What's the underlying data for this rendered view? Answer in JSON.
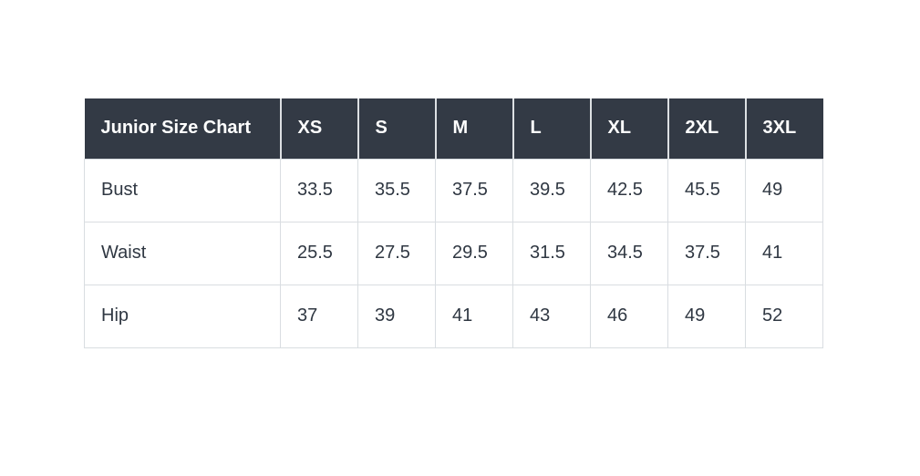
{
  "page": {
    "background": "#ffffff"
  },
  "table": {
    "title": "Junior Size Chart",
    "columns": [
      "XS",
      "S",
      "M",
      "L",
      "XL",
      "2XL",
      "3XL"
    ],
    "rows": [
      {
        "label": "Bust",
        "values": [
          "33.5",
          "35.5",
          "37.5",
          "39.5",
          "42.5",
          "45.5",
          "49"
        ]
      },
      {
        "label": "Waist",
        "values": [
          "25.5",
          "27.5",
          "29.5",
          "31.5",
          "34.5",
          "37.5",
          "41"
        ]
      },
      {
        "label": "Hip",
        "values": [
          "37",
          "39",
          "41",
          "43",
          "46",
          "49",
          "52"
        ]
      }
    ],
    "colors": {
      "header_bg": "#333a45",
      "header_text": "#ffffff",
      "body_bg": "#ffffff",
      "body_text": "#2f3742",
      "border": "#d9dde1",
      "header_divider": "#dde0e3"
    }
  },
  "chart_data": {
    "type": "table",
    "title": "Junior Size Chart",
    "columns": [
      "XS",
      "S",
      "M",
      "L",
      "XL",
      "2XL",
      "3XL"
    ],
    "rows": [
      {
        "label": "Bust",
        "values": [
          33.5,
          35.5,
          37.5,
          39.5,
          42.5,
          45.5,
          49
        ]
      },
      {
        "label": "Waist",
        "values": [
          25.5,
          27.5,
          29.5,
          31.5,
          34.5,
          37.5,
          41
        ]
      },
      {
        "label": "Hip",
        "values": [
          37,
          39,
          41,
          43,
          46,
          49,
          52
        ]
      }
    ],
    "units": "inches",
    "layout": "header-row-dark, measurement-labels-in-first-column"
  }
}
